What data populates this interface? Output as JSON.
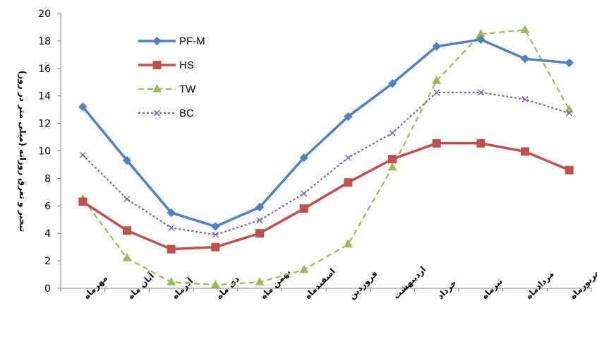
{
  "chart_data": {
    "type": "line",
    "ylabel": "تبخیر و تعرق روزانه (میلی متر در روز)",
    "ylim": [
      0,
      20
    ],
    "ytick_step": 2,
    "grid": false,
    "legend_position": "top-left",
    "categories": [
      "مهرماه",
      "آبان ماه",
      "آذرماه",
      "دی ماه",
      "بهمن ماه",
      "اسفندماه",
      "فروردین",
      "اردیبهشت",
      "خرداد",
      "تیرماه",
      "مردادماه",
      "شهریورماه"
    ],
    "series": [
      {
        "name": "PF-M",
        "color": "#4F81BD",
        "marker": "diamond",
        "dash": "solid",
        "width": 3.5,
        "values": [
          13.2,
          9.3,
          5.5,
          4.5,
          5.9,
          9.5,
          12.5,
          14.9,
          17.6,
          18.1,
          16.7,
          16.4
        ]
      },
      {
        "name": "HS",
        "color": "#C0504D",
        "marker": "square",
        "dash": "solid",
        "width": 3.5,
        "values": [
          6.3,
          4.2,
          2.85,
          3.0,
          4.0,
          5.8,
          7.7,
          9.4,
          10.55,
          10.55,
          9.95,
          8.6
        ]
      },
      {
        "name": "TW",
        "color": "#9BBB59",
        "marker": "triangle",
        "dash": "dashed",
        "width": 2.2,
        "values": [
          6.5,
          2.2,
          0.45,
          0.25,
          0.45,
          1.35,
          3.2,
          8.8,
          15.1,
          18.5,
          18.8,
          13.0
        ]
      },
      {
        "name": "BC",
        "color": "#8064A2",
        "marker": "x",
        "dash": "dotted",
        "width": 2.2,
        "values": [
          9.7,
          6.5,
          4.4,
          3.9,
          4.95,
          6.9,
          9.5,
          11.3,
          14.25,
          14.25,
          13.75,
          12.75
        ]
      }
    ]
  }
}
